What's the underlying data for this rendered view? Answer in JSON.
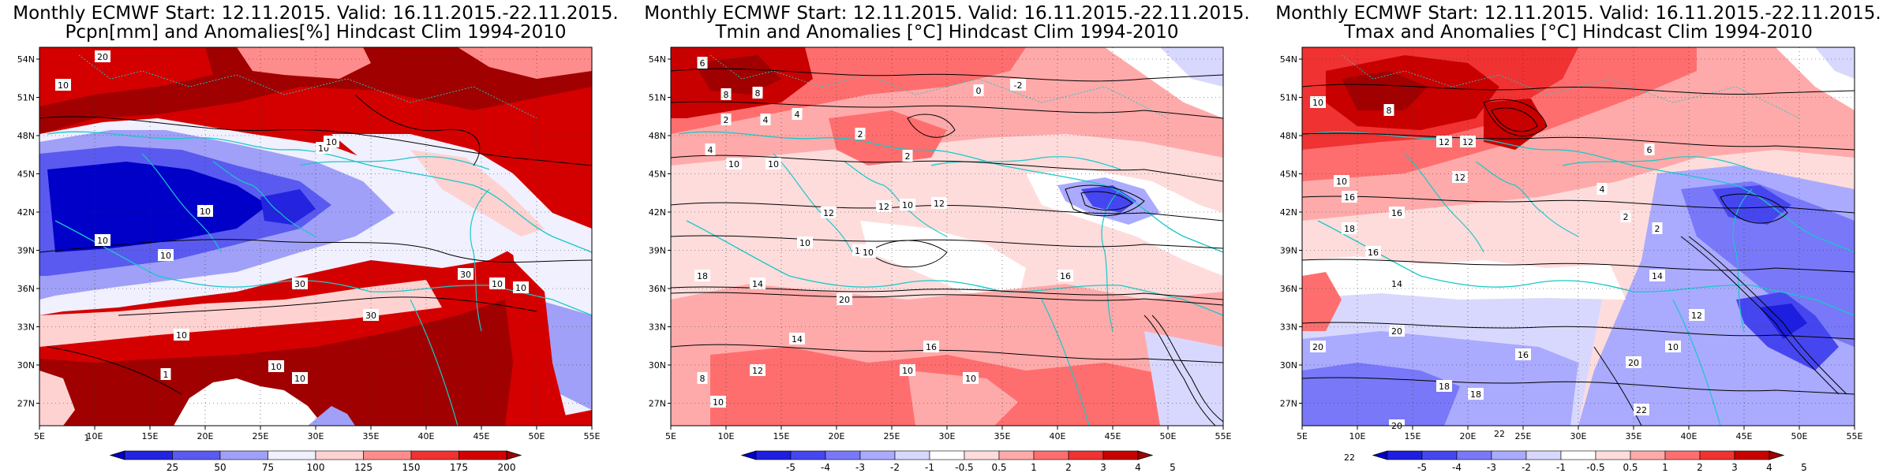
{
  "panels": [
    {
      "title_line1": "Monthly ECMWF Start: 12.11.2015. Valid: 16.11.2015.-22.11.2015.",
      "title_line2": "Pcpn[mm] and Anomalies[%] Hindcast Clim 1994-2010",
      "colorbar": {
        "labels": [
          "25",
          "50",
          "75",
          "100",
          "125",
          "150",
          "175",
          "200"
        ],
        "colors": [
          "#0000c8",
          "#2323e0",
          "#5a5af0",
          "#a0a0f8",
          "#f0f0ff",
          "#ffd2d2",
          "#ff8c8c",
          "#f03232",
          "#d40000",
          "#a00000"
        ]
      },
      "contour_labels": [
        "20",
        "10",
        "10",
        "10",
        "10",
        "10",
        "30",
        "30",
        "10",
        "10",
        "10",
        "30",
        "10",
        "1",
        "1",
        "10",
        "10"
      ]
    },
    {
      "title_line1": "Monthly ECMWF Start: 12.11.2015. Valid: 16.11.2015.-22.11.2015.",
      "title_line2": "Tmin and Anomalies [°C] Hindcast Clim 1994-2010",
      "colorbar": {
        "labels": [
          "-5",
          "-4",
          "-3",
          "-2",
          "-1",
          "-0.5",
          "0.5",
          "1",
          "2",
          "3",
          "4",
          "5"
        ],
        "colors": [
          "#0000c8",
          "#1e1ee0",
          "#4646f0",
          "#7878f8",
          "#aaaaff",
          "#d8d8ff",
          "#ffffff",
          "#ffdcdc",
          "#ffaaaa",
          "#ff6e6e",
          "#f03232",
          "#c80000",
          "#a00000"
        ]
      },
      "contour_labels": [
        "6",
        "8",
        "8",
        "4",
        "2",
        "2",
        "0",
        "-2",
        "4",
        "2",
        "4",
        "10",
        "10",
        "12",
        "12",
        "10",
        "10",
        "18",
        "14",
        "12",
        "10",
        "10",
        "20",
        "12",
        "14",
        "16",
        "10",
        "10",
        "8",
        "10",
        "16"
      ]
    },
    {
      "title_line1": "Monthly ECMWF Start: 12.11.2015. Valid: 16.11.2015.-22.11.2015.",
      "title_line2": "Tmax and Anomalies [°C] Hindcast Clim 1994-2010",
      "colorbar": {
        "labels": [
          "-5",
          "-4",
          "-3",
          "-2",
          "-1",
          "-0.5",
          "0.5",
          "1",
          "2",
          "3",
          "4",
          "5"
        ],
        "colors": [
          "#0000c8",
          "#1e1ee0",
          "#4646f0",
          "#7878f8",
          "#aaaaff",
          "#d8d8ff",
          "#ffffff",
          "#ffdcdc",
          "#ffaaaa",
          "#ff6e6e",
          "#f03232",
          "#c80000",
          "#a00000"
        ]
      },
      "contour_labels": [
        "10",
        "10",
        "8",
        "12",
        "16",
        "16",
        "12",
        "12",
        "6",
        "2",
        "2",
        "4",
        "18",
        "16",
        "14",
        "14",
        "12",
        "20",
        "20",
        "18",
        "16",
        "20",
        "22",
        "18",
        "10",
        "22",
        "22",
        "20"
      ]
    }
  ],
  "lon_ticks": [
    "5E",
    "10E",
    "15E",
    "20E",
    "25E",
    "30E",
    "35E",
    "40E",
    "45E",
    "50E",
    "55E"
  ],
  "lat_ticks": [
    "54N",
    "51N",
    "48N",
    "45N",
    "42N",
    "39N",
    "36N",
    "33N",
    "30N",
    "27N"
  ],
  "colors": {
    "coast": "#19c8c8",
    "contour": "#000000",
    "grid": "#333333"
  }
}
